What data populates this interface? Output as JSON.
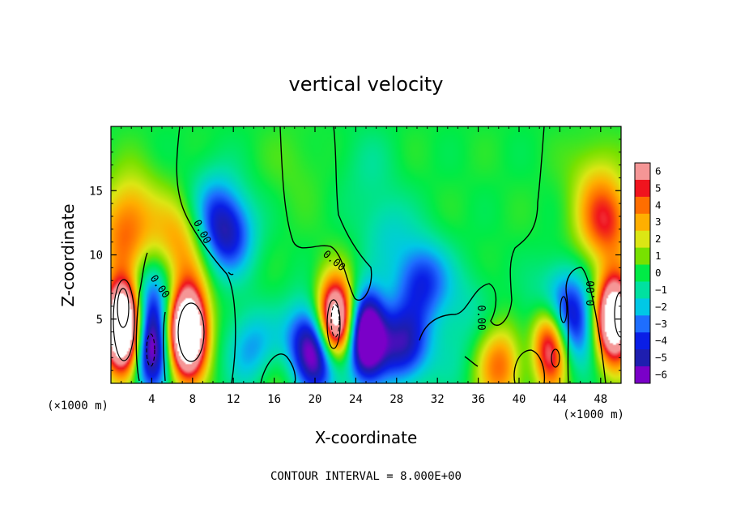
{
  "chart_data": {
    "type": "heatmap",
    "title": "vertical velocity",
    "xlabel": "X-coordinate",
    "ylabel": "Z-coordinate",
    "x_unit_label_left": "(×1000 m)",
    "x_unit_label_right": "(×1000 m)",
    "footer": "CONTOUR INTERVAL = 8.000E+00",
    "xlim": [
      0,
      50
    ],
    "ylim": [
      0,
      20
    ],
    "x_ticks": [
      4,
      8,
      12,
      16,
      20,
      24,
      28,
      32,
      36,
      40,
      44,
      48
    ],
    "y_ticks": [
      5,
      10,
      15
    ],
    "colorbar": {
      "min": -6,
      "max": 6,
      "tick_labels": [
        "6",
        "5",
        "4",
        "3",
        "2",
        "1",
        "0",
        "−1",
        "−2",
        "−3",
        "−4",
        "−5",
        "−6"
      ]
    },
    "contour_labels": [
      "0.00",
      "0.00",
      "0.00",
      "0.00",
      "0.00"
    ],
    "features": [
      {
        "x": 1.2,
        "z": 4.5,
        "w": 14
      },
      {
        "x": 1.3,
        "z": 11.0,
        "w": 3
      },
      {
        "x": 2.0,
        "z": 14.0,
        "w": 2
      },
      {
        "x": 3.9,
        "z": 2.8,
        "w": -7
      },
      {
        "x": 3.8,
        "z": 7.0,
        "w": -3
      },
      {
        "x": 7.5,
        "z": 4.0,
        "w": 13
      },
      {
        "x": 7.2,
        "z": 9.5,
        "w": 2
      },
      {
        "x": 6.5,
        "z": 12.0,
        "w": 2
      },
      {
        "x": 11.3,
        "z": 11.5,
        "w": -4.5
      },
      {
        "x": 10.0,
        "z": 14.0,
        "w": -2
      },
      {
        "x": 14.0,
        "z": 2.5,
        "w": -3
      },
      {
        "x": 16.3,
        "z": 1.0,
        "w": 1.5
      },
      {
        "x": 19.5,
        "z": 3.5,
        "w": -3.5
      },
      {
        "x": 20.8,
        "z": 2.0,
        "w": -6
      },
      {
        "x": 22.0,
        "z": 4.5,
        "w": 12
      },
      {
        "x": 25.0,
        "z": 3.8,
        "w": -8
      },
      {
        "x": 28.5,
        "z": 3.0,
        "w": -5
      },
      {
        "x": 30.5,
        "z": 8.0,
        "w": -4
      },
      {
        "x": 27.0,
        "z": 12.0,
        "w": -1.5
      },
      {
        "x": 34.0,
        "z": 2.0,
        "w": -1
      },
      {
        "x": 38.5,
        "z": 1.5,
        "w": 5
      },
      {
        "x": 35.0,
        "z": 6.0,
        "w": -1
      },
      {
        "x": 41.0,
        "z": 2.0,
        "w": -3
      },
      {
        "x": 43.0,
        "z": 3.0,
        "w": 9
      },
      {
        "x": 44.0,
        "z": 6.0,
        "w": -4
      },
      {
        "x": 45.5,
        "z": 4.0,
        "w": -3
      },
      {
        "x": 48.5,
        "z": 12.5,
        "w": 4.5
      },
      {
        "x": 49.3,
        "z": 5.0,
        "w": 11
      },
      {
        "x": 47.5,
        "z": 16.0,
        "w": 1.5
      },
      {
        "x": 18.0,
        "z": 17.0,
        "w": 0.5
      },
      {
        "x": 25.0,
        "z": 17.0,
        "w": -0.8
      }
    ]
  }
}
